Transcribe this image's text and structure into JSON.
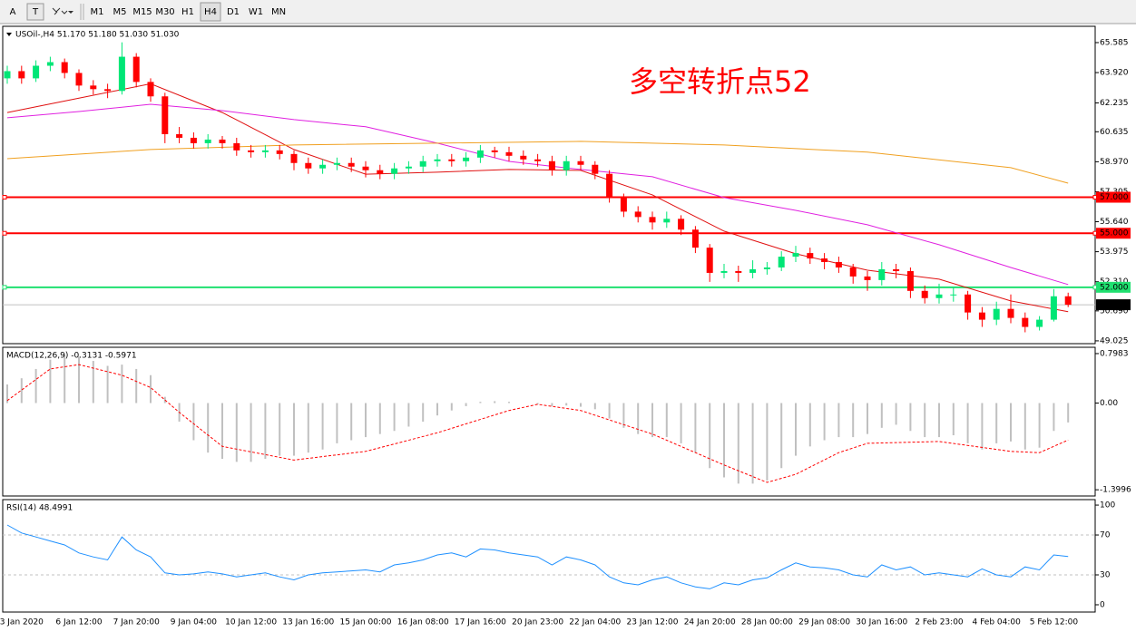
{
  "toolbar": {
    "tools": [
      "A",
      "T"
    ],
    "timeframes": [
      "M1",
      "M5",
      "M15",
      "M30",
      "H1",
      "H4",
      "D1",
      "W1",
      "MN"
    ],
    "active_index": 5
  },
  "chart_data": [
    {
      "type": "candlestick",
      "title": "USOil-,H4  51.170 51.180 51.030 51.030",
      "annotation": "多空转折点52",
      "categories": [
        null,
        "3 Jan 2020",
        null,
        null,
        null,
        "6 Jan 12:00",
        null,
        null,
        null,
        "7 Jan 20:00",
        null,
        null,
        null,
        "9 Jan 04:00",
        null,
        null,
        null,
        "10 Jan 12:00",
        null,
        null,
        null,
        "13 Jan 16:00",
        null,
        null,
        null,
        "15 Jan 00:00",
        null,
        null,
        null,
        "16 Jan 08:00",
        null,
        null,
        null,
        "17 Jan 16:00",
        null,
        null,
        null,
        "20 Jan 23:00",
        null,
        null,
        null,
        "22 Jan 04:00",
        null,
        null,
        null,
        "23 Jan 12:00",
        null,
        null,
        null,
        "24 Jan 20:00",
        null,
        null,
        null,
        "28 Jan 00:00",
        null,
        null,
        null,
        "29 Jan 08:00",
        null,
        null,
        null,
        "30 Jan 16:00",
        null,
        null,
        null,
        "2 Feb 23:00",
        null,
        null,
        null,
        "4 Feb 04:00",
        null,
        null,
        null,
        "5 Feb 12:00",
        null
      ],
      "open": [
        63.6,
        64.0,
        63.6,
        64.3,
        64.5,
        63.9,
        63.2,
        63.0,
        62.9,
        64.8,
        63.4,
        62.6,
        60.5,
        60.3,
        60.0,
        60.2,
        60.0,
        59.6,
        59.5,
        59.6,
        59.4,
        58.9,
        58.6,
        58.8,
        58.9,
        58.7,
        58.5,
        58.3,
        58.6,
        58.7,
        59.0,
        59.1,
        59.0,
        59.2,
        59.6,
        59.5,
        59.3,
        59.1,
        59.0,
        58.5,
        59.0,
        58.8,
        58.3,
        57.0,
        56.2,
        55.9,
        55.6,
        55.8,
        55.2,
        54.2,
        52.8,
        52.9,
        52.8,
        53.0,
        53.1,
        53.7,
        53.9,
        53.6,
        53.4,
        53.1,
        52.6,
        52.4,
        53.0,
        52.9,
        51.8,
        51.4,
        51.6,
        51.6,
        50.6,
        50.2,
        50.8,
        50.3,
        49.8,
        50.2,
        51.5
      ],
      "high": [
        64.3,
        64.3,
        64.6,
        64.8,
        64.7,
        64.1,
        63.5,
        63.3,
        65.6,
        65.0,
        63.6,
        62.8,
        60.9,
        60.6,
        60.5,
        60.4,
        60.3,
        59.9,
        59.9,
        59.9,
        59.6,
        59.2,
        59.1,
        59.2,
        59.2,
        59.0,
        58.8,
        58.9,
        59.0,
        59.3,
        59.4,
        59.4,
        59.5,
        59.9,
        59.8,
        59.8,
        59.6,
        59.4,
        59.3,
        59.3,
        59.3,
        59.0,
        58.5,
        57.2,
        56.5,
        56.2,
        56.2,
        56.0,
        55.4,
        54.4,
        53.3,
        53.2,
        53.5,
        53.4,
        54.0,
        54.3,
        54.2,
        53.9,
        53.7,
        53.3,
        52.9,
        53.4,
        53.3,
        53.1,
        52.1,
        52.2,
        52.0,
        51.8,
        50.9,
        51.2,
        51.6,
        50.6,
        50.4,
        51.9,
        51.7
      ],
      "low": [
        63.3,
        63.3,
        63.4,
        64.0,
        63.6,
        62.9,
        62.7,
        62.5,
        62.7,
        63.1,
        62.3,
        60.0,
        60.0,
        59.7,
        59.7,
        59.7,
        59.3,
        59.2,
        59.2,
        59.1,
        58.5,
        58.3,
        58.3,
        58.5,
        58.4,
        58.1,
        58.0,
        58.0,
        58.3,
        58.4,
        58.7,
        58.7,
        58.7,
        58.9,
        59.2,
        59.0,
        58.8,
        58.7,
        58.2,
        58.2,
        58.5,
        58.0,
        56.7,
        55.9,
        55.6,
        55.2,
        55.3,
        54.9,
        53.9,
        52.3,
        52.5,
        52.3,
        52.5,
        52.7,
        52.9,
        53.4,
        53.3,
        53.0,
        52.8,
        52.2,
        51.8,
        52.1,
        52.5,
        51.4,
        51.1,
        51.1,
        51.2,
        50.2,
        49.8,
        49.9,
        50.0,
        49.5,
        49.6,
        50.1,
        50.9
      ],
      "close": [
        64.0,
        63.6,
        64.3,
        64.5,
        63.9,
        63.2,
        63.0,
        62.9,
        64.8,
        63.4,
        62.6,
        60.5,
        60.3,
        60.0,
        60.2,
        60.0,
        59.6,
        59.5,
        59.6,
        59.4,
        58.9,
        58.6,
        58.8,
        58.9,
        58.7,
        58.5,
        58.3,
        58.6,
        58.7,
        59.0,
        59.1,
        59.0,
        59.2,
        59.6,
        59.5,
        59.3,
        59.1,
        59.0,
        58.5,
        59.0,
        58.8,
        58.3,
        57.0,
        56.2,
        55.9,
        55.6,
        55.8,
        55.2,
        54.2,
        52.8,
        52.9,
        52.8,
        53.0,
        53.1,
        53.7,
        53.9,
        53.6,
        53.4,
        53.1,
        52.6,
        52.4,
        53.0,
        52.9,
        51.8,
        51.4,
        51.6,
        51.6,
        50.6,
        50.2,
        50.8,
        50.3,
        49.8,
        50.2,
        51.5,
        51.03
      ],
      "up_color": "#00e676",
      "down_color": "#ff0000",
      "overlays": [
        {
          "color": "#e01010",
          "x": [
            0,
            5,
            10,
            15,
            20,
            25,
            30,
            35,
            40,
            45,
            50,
            55,
            60,
            65,
            70,
            74
          ],
          "values": [
            61.7,
            62.5,
            63.3,
            61.7,
            59.65,
            58.28,
            58.39,
            58.54,
            58.49,
            57.13,
            55.12,
            53.86,
            52.95,
            52.45,
            51.24,
            50.64
          ]
        },
        {
          "color": "#e020e0",
          "x": [
            0,
            5,
            10,
            15,
            20,
            25,
            30,
            35,
            40,
            45,
            50,
            55,
            60,
            65,
            70,
            74
          ],
          "values": [
            61.41,
            61.76,
            62.16,
            61.81,
            61.31,
            60.91,
            60.0,
            58.99,
            58.54,
            58.14,
            56.98,
            56.27,
            55.47,
            54.36,
            53.1,
            52.15
          ]
        },
        {
          "color": "#f0a020",
          "x": [
            0,
            10,
            20,
            30,
            40,
            50,
            60,
            70,
            74
          ],
          "values": [
            59.14,
            59.65,
            59.9,
            60.0,
            60.1,
            59.9,
            59.5,
            58.64,
            57.78
          ]
        }
      ],
      "hlines": [
        {
          "value": 57,
          "label": "57.000",
          "color": "#ff0000"
        },
        {
          "value": 55,
          "label": "55.000",
          "color": "#ff0000"
        },
        {
          "value": 52,
          "label": "52.000",
          "color": "#20e070"
        },
        {
          "value": 51.03,
          "label": "51.030",
          "color": "#000000",
          "line_color": "#c0c0c0"
        }
      ],
      "ylim": [
        48.87,
        66.49
      ],
      "yticks": [
        65.585,
        {
          "value": 63.92,
          "label": "63.920"
        },
        62.235,
        60.635,
        {
          "value": 58.97,
          "label": "58.970"
        },
        57.305,
        {
          "value": 55.64,
          "label": "55.640"
        },
        53.975,
        {
          "value": 52.31,
          "label": "52.310"
        },
        {
          "value": 50.69,
          "label": "50.690"
        },
        49.025
      ]
    },
    {
      "type": "macd",
      "title": "MACD(12,26,9) -0.3131 -0.5971",
      "histogram": [
        0.3,
        0.4,
        0.55,
        0.7,
        0.78,
        0.75,
        0.68,
        0.6,
        0.62,
        0.55,
        0.45,
        0.1,
        -0.3,
        -0.6,
        -0.8,
        -0.9,
        -0.95,
        -0.95,
        -0.9,
        -0.85,
        -0.85,
        -0.8,
        -0.75,
        -0.65,
        -0.6,
        -0.55,
        -0.5,
        -0.45,
        -0.38,
        -0.3,
        -0.2,
        -0.12,
        -0.05,
        0.02,
        0.03,
        0.02,
        0.0,
        -0.02,
        -0.05,
        -0.04,
        -0.06,
        -0.1,
        -0.25,
        -0.4,
        -0.5,
        -0.55,
        -0.55,
        -0.65,
        -0.8,
        -1.05,
        -1.2,
        -1.3,
        -1.3,
        -1.25,
        -1.05,
        -0.85,
        -0.7,
        -0.6,
        -0.55,
        -0.55,
        -0.5,
        -0.4,
        -0.35,
        -0.45,
        -0.55,
        -0.55,
        -0.52,
        -0.65,
        -0.75,
        -0.65,
        -0.62,
        -0.75,
        -0.72,
        -0.45,
        -0.3131
      ],
      "hist_color": "#c0c0c0",
      "signal": {
        "color": "#ff0000",
        "x": [
          0,
          3,
          5,
          8,
          10,
          12,
          15,
          20,
          25,
          30,
          35,
          37,
          40,
          45,
          50,
          53,
          55,
          58,
          60,
          65,
          70,
          72,
          74
        ],
        "values": [
          0.04,
          0.55,
          0.62,
          0.45,
          0.25,
          -0.15,
          -0.7,
          -0.92,
          -0.78,
          -0.48,
          -0.12,
          -0.02,
          -0.12,
          -0.5,
          -1.0,
          -1.28,
          -1.15,
          -0.8,
          -0.65,
          -0.62,
          -0.78,
          -0.8,
          -0.5971
        ]
      },
      "ylim": [
        -1.5,
        0.9
      ],
      "yticks": [
        0.7983,
        {
          "value": 0,
          "label": "0.00"
        },
        -1.3996
      ]
    },
    {
      "type": "line",
      "title": "RSI(14) 48.4991",
      "values": [
        80,
        72,
        68,
        64,
        60,
        52,
        48,
        45,
        68,
        55,
        48,
        32,
        30,
        31,
        33,
        31,
        28,
        30,
        32,
        28,
        25,
        30,
        32,
        33,
        34,
        35,
        33,
        40,
        42,
        45,
        50,
        52,
        48,
        56,
        55,
        52,
        50,
        48,
        40,
        48,
        45,
        40,
        28,
        22,
        20,
        25,
        28,
        22,
        18,
        16,
        22,
        20,
        25,
        27,
        35,
        42,
        38,
        37,
        35,
        30,
        28,
        40,
        35,
        38,
        30,
        32,
        30,
        28,
        36,
        30,
        28,
        38,
        35,
        50,
        48.4991
      ],
      "color": "#1e90ff",
      "levels": [
        70,
        30
      ],
      "ylim": [
        -7.3,
        105.5
      ],
      "yticks": [
        100,
        70,
        30,
        0
      ]
    }
  ]
}
